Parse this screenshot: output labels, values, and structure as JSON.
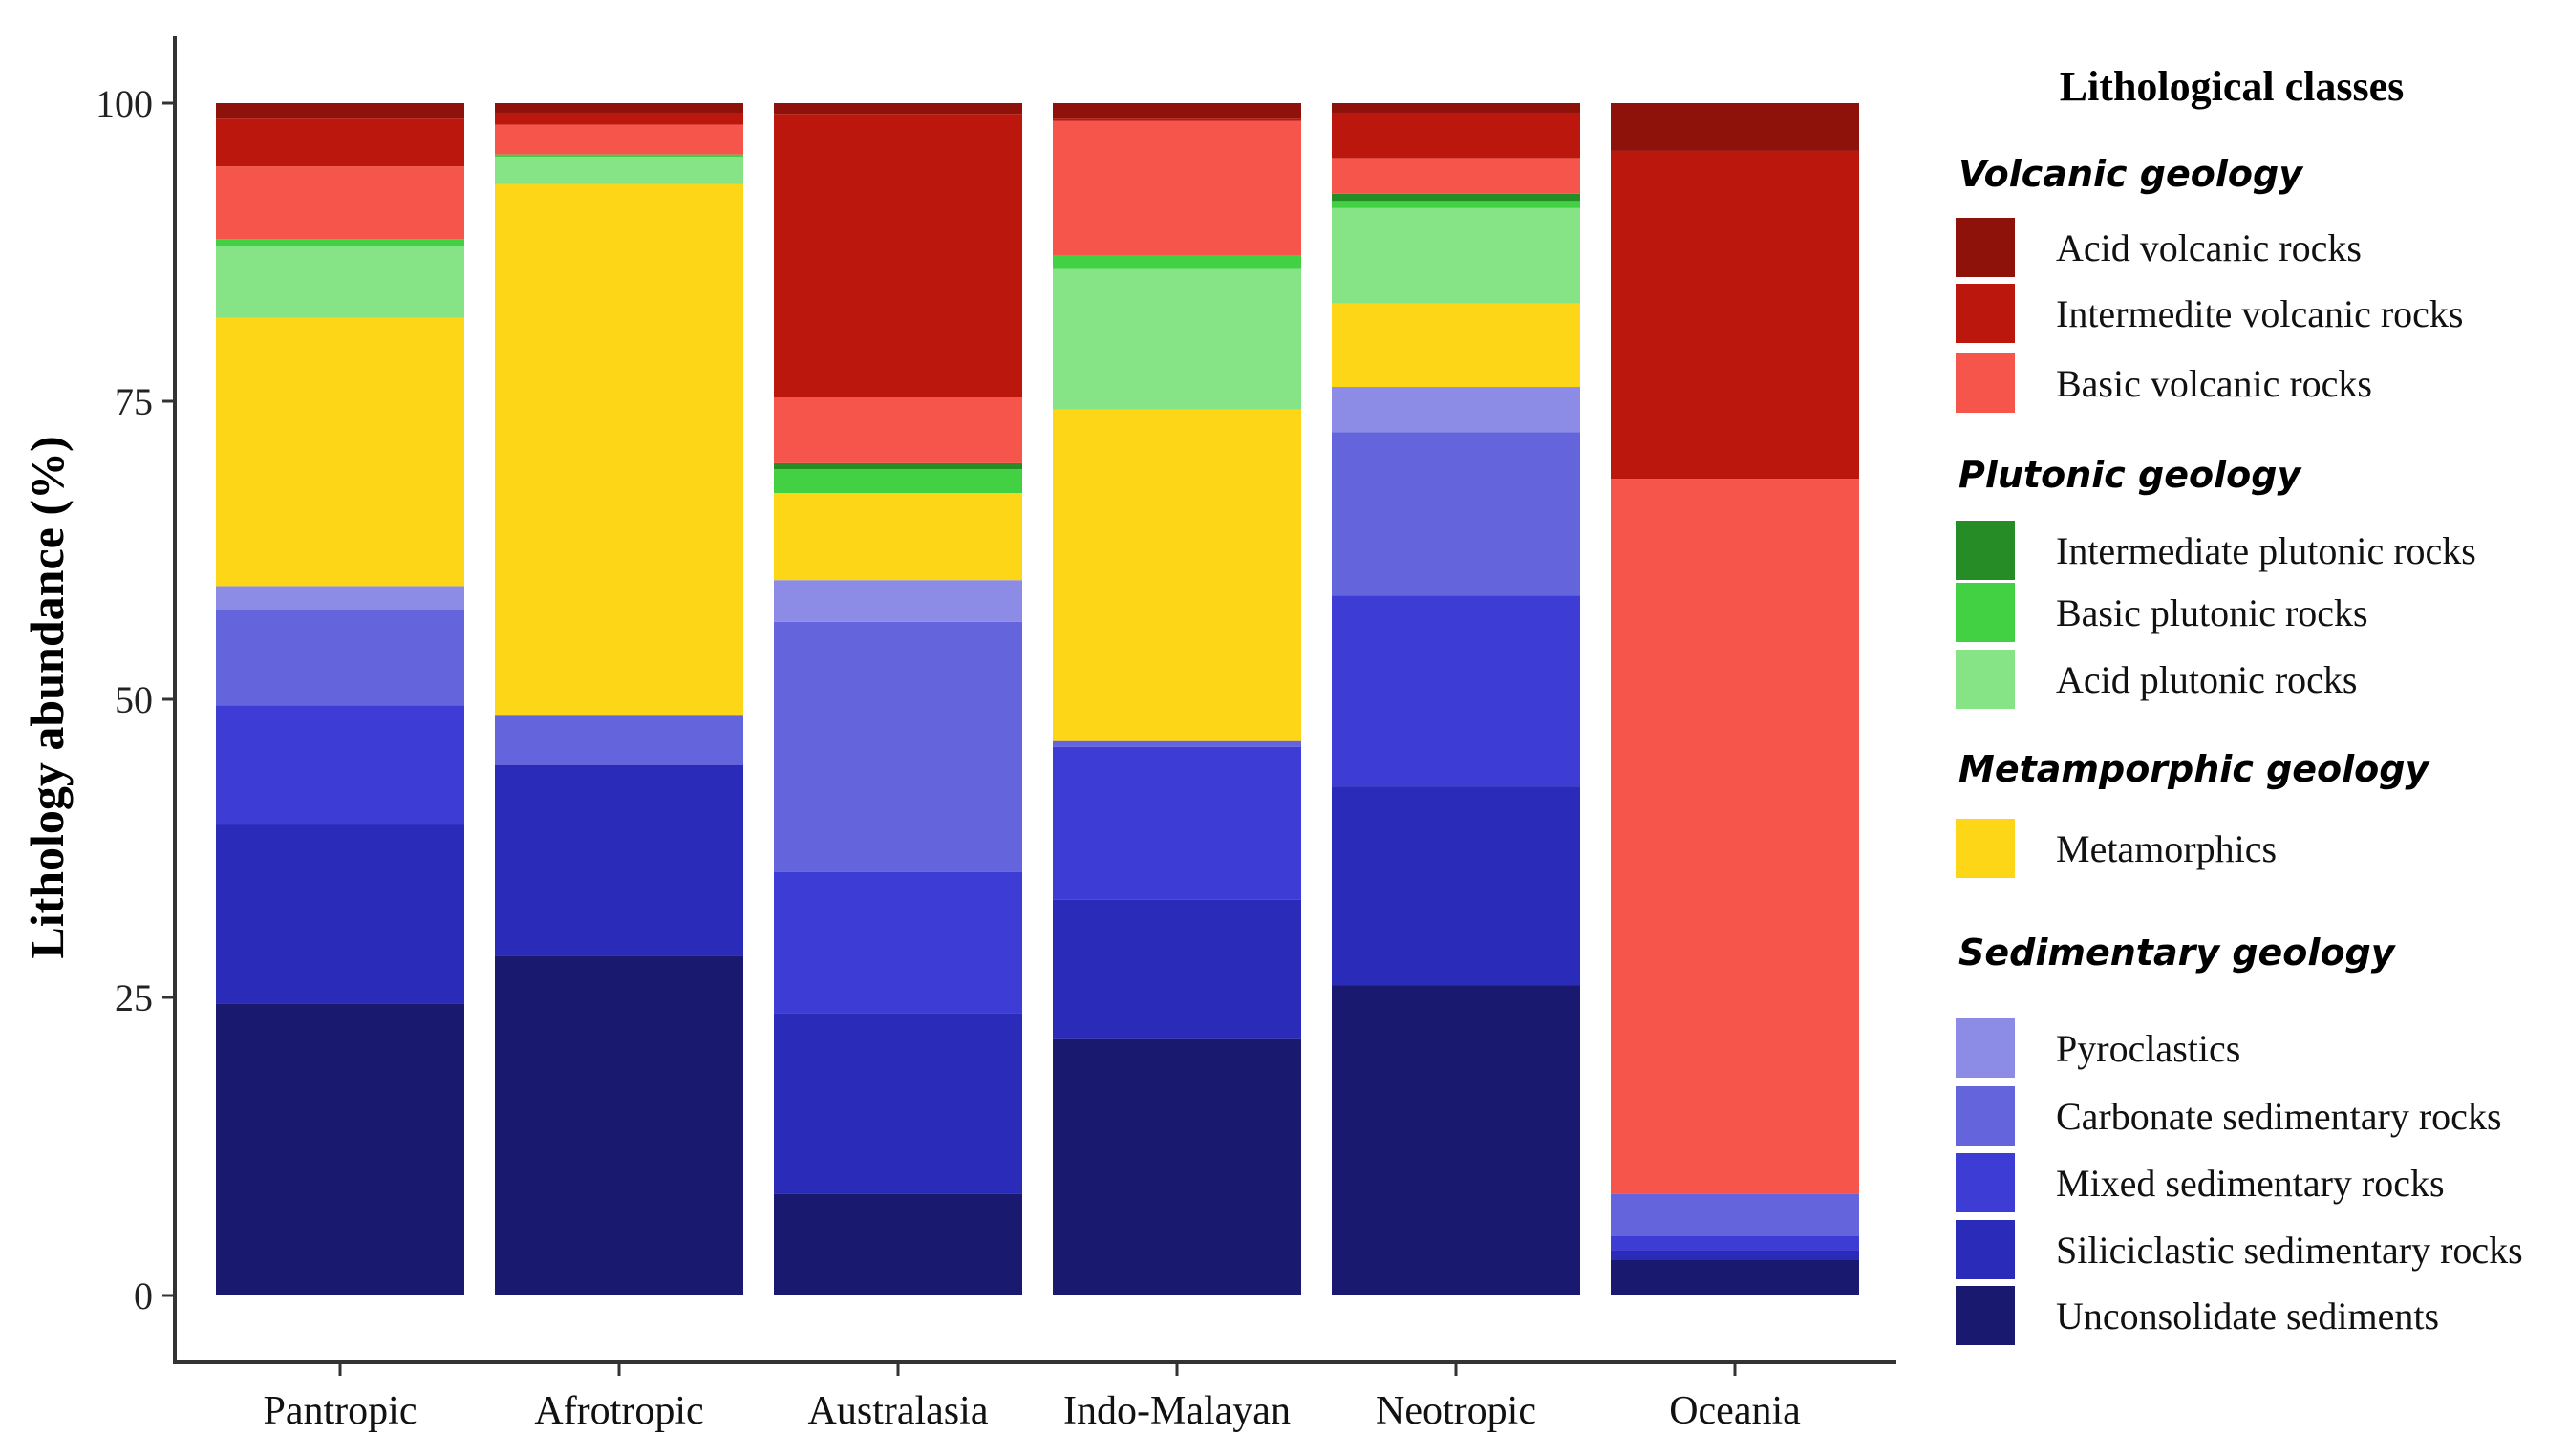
{
  "chart_data": {
    "type": "bar",
    "stacked": true,
    "ylabel": "Lithology abundance (%)",
    "xlabel": "",
    "ylim": [
      0,
      100
    ],
    "yticks": [
      0,
      25,
      50,
      75,
      100
    ],
    "categories": [
      "Pantropic",
      "Afrotropic",
      "Australasia",
      "Indo-Malayan",
      "Neotropic",
      "Oceania"
    ],
    "series": [
      {
        "name": "Unconsolidate sediments",
        "color": "#191970",
        "values": [
          24.5,
          28.5,
          8.5,
          21.5,
          26,
          3
        ]
      },
      {
        "name": "Siliciclastic sedimentary rocks",
        "color": "#2b2bba",
        "values": [
          15,
          16,
          15.2,
          11.7,
          16.7,
          0.8
        ]
      },
      {
        "name": "Mixed sedimentary rocks",
        "color": "#3d3dd6",
        "values": [
          10,
          0,
          11.8,
          12.8,
          16,
          1.2
        ]
      },
      {
        "name": "Carbonate sedimentary rocks",
        "color": "#6464dc",
        "values": [
          8,
          4.2,
          21,
          0.5,
          13.7,
          3.5
        ]
      },
      {
        "name": "Pyroclastics",
        "color": "#8c8ce6",
        "values": [
          2,
          0,
          3.5,
          0,
          3.8,
          0
        ]
      },
      {
        "name": "Metamorphics",
        "color": "#fcd617",
        "values": [
          22.5,
          44.5,
          7.3,
          27.8,
          7,
          0
        ]
      },
      {
        "name": "Acid plutonic rocks",
        "color": "#86e486",
        "values": [
          6,
          2.3,
          0,
          11.8,
          8,
          0
        ]
      },
      {
        "name": "Basic plutonic rocks",
        "color": "#42d142",
        "values": [
          0.6,
          0.2,
          2,
          1.1,
          0.6,
          0
        ]
      },
      {
        "name": "Intermediate plutonic rocks",
        "color": "#268c26",
        "values": [
          0,
          0,
          0.5,
          0,
          0.6,
          0
        ]
      },
      {
        "name": "Basic volcanic rocks",
        "color": "#f5554a",
        "values": [
          6.1,
          2.5,
          5.5,
          11.3,
          3,
          60
        ]
      },
      {
        "name": "Intermediate volcanic rocks",
        "color": "#bb170d",
        "values": [
          4,
          1,
          23.8,
          0.2,
          3.8,
          27.5
        ]
      },
      {
        "name": "Acid volcanic rocks",
        "color": "#8e110a",
        "values": [
          1.3,
          0.8,
          0.9,
          1.3,
          0.8,
          4
        ]
      }
    ],
    "legend": {
      "title": "Lithological classes",
      "position": "right",
      "groups": [
        {
          "title": "Volcanic geology",
          "items": [
            {
              "label": "Acid volcanic rocks",
              "color": "#8e110a"
            },
            {
              "label": "Intermedite volcanic rocks",
              "color": "#bb170d"
            },
            {
              "label": "Basic volcanic rocks",
              "color": "#f5554a"
            }
          ]
        },
        {
          "title": "Plutonic geology",
          "items": [
            {
              "label": "Intermediate plutonic rocks",
              "color": "#268c26"
            },
            {
              "label": "Basic plutonic rocks",
              "color": "#42d142"
            },
            {
              "label": "Acid plutonic rocks",
              "color": "#86e486"
            }
          ]
        },
        {
          "title": "Metamporphic geology",
          "items": [
            {
              "label": "Metamorphics",
              "color": "#fcd617"
            }
          ]
        },
        {
          "title": "Sedimentary geology",
          "items": [
            {
              "label": "Pyroclastics",
              "color": "#8c8ce6"
            },
            {
              "label": "Carbonate sedimentary rocks",
              "color": "#6464dc"
            },
            {
              "label": "Mixed sedimentary rocks",
              "color": "#3d3dd6"
            },
            {
              "label": "Siliciclastic sedimentary rocks",
              "color": "#2b2bba"
            },
            {
              "label": "Unconsolidate sediments",
              "color": "#191970"
            }
          ]
        }
      ]
    }
  }
}
